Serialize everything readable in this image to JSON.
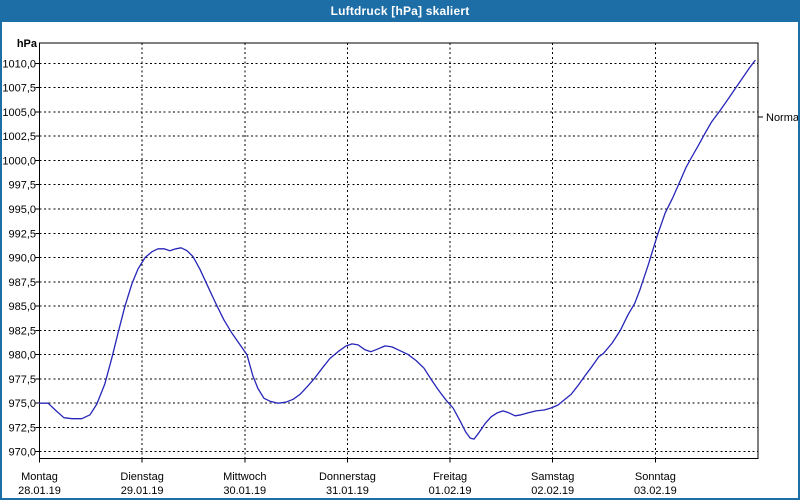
{
  "window": {
    "title": "Luftdruck [hPa] skaliert"
  },
  "chart_data": {
    "type": "line",
    "title": "Luftdruck [hPa] skaliert",
    "unit_label": "hPa",
    "normal_label": "Normal",
    "normal_value": 1004.5,
    "grid": "dashed",
    "legend_position": "none",
    "ylim": [
      969.3,
      1012.1
    ],
    "x_hours_range": [
      0,
      168
    ],
    "y_tick_values": [
      1010.0,
      1007.5,
      1005.0,
      1002.5,
      1000.0,
      997.5,
      995.0,
      992.5,
      990.0,
      987.5,
      985.0,
      982.5,
      980.0,
      977.5,
      975.0,
      972.5,
      970.0
    ],
    "y_tick_labels": [
      "1010,0",
      "1007,5",
      "1005,0",
      "1002,5",
      "1000,0",
      "997,5",
      "995,0",
      "992,5",
      "990,0",
      "987,5",
      "985,0",
      "982,5",
      "980,0",
      "977,5",
      "975,0",
      "972,5",
      "970,0"
    ],
    "days": [
      {
        "name": "Montag",
        "date": "28.01.19"
      },
      {
        "name": "Dienstag",
        "date": "29.01.19"
      },
      {
        "name": "Mittwoch",
        "date": "30.01.19"
      },
      {
        "name": "Donnerstag",
        "date": "31.01.19"
      },
      {
        "name": "Freitag",
        "date": "01.02.19"
      },
      {
        "name": "Samstag",
        "date": "02.02.19"
      },
      {
        "name": "Sonntag",
        "date": "03.02.19"
      }
    ],
    "series": [
      {
        "name": "Luftdruck",
        "color": "#2626b8",
        "points": [
          [
            0,
            975.0
          ],
          [
            2,
            975.0
          ],
          [
            3.9,
            974.2
          ],
          [
            5.7,
            973.5
          ],
          [
            7.6,
            973.4
          ],
          [
            9.9,
            973.4
          ],
          [
            11.8,
            973.8
          ],
          [
            13.4,
            974.9
          ],
          [
            15.3,
            977.0
          ],
          [
            17,
            979.8
          ],
          [
            18.4,
            982.3
          ],
          [
            20,
            985.0
          ],
          [
            21.6,
            987.3
          ],
          [
            23,
            988.8
          ],
          [
            24.7,
            990.0
          ],
          [
            26.3,
            990.6
          ],
          [
            27.7,
            990.9
          ],
          [
            29.1,
            990.9
          ],
          [
            30.5,
            990.7
          ],
          [
            31.9,
            990.9
          ],
          [
            33.1,
            991.0
          ],
          [
            34.5,
            990.7
          ],
          [
            35.9,
            990.1
          ],
          [
            37.5,
            988.8
          ],
          [
            39.4,
            987.0
          ],
          [
            41.3,
            985.2
          ],
          [
            43.1,
            983.6
          ],
          [
            45,
            982.2
          ],
          [
            46.9,
            981.0
          ],
          [
            48.5,
            980.0
          ],
          [
            49.9,
            977.8
          ],
          [
            51.1,
            976.5
          ],
          [
            52.5,
            975.5
          ],
          [
            53.9,
            975.2
          ],
          [
            55.8,
            975.0
          ],
          [
            57.6,
            975.1
          ],
          [
            59.3,
            975.4
          ],
          [
            60.9,
            975.9
          ],
          [
            62.8,
            976.8
          ],
          [
            64.4,
            977.6
          ],
          [
            66.1,
            978.6
          ],
          [
            67.9,
            979.6
          ],
          [
            69.8,
            980.3
          ],
          [
            71.7,
            980.9
          ],
          [
            73.1,
            981.1
          ],
          [
            74.5,
            981.0
          ],
          [
            76.1,
            980.5
          ],
          [
            77.5,
            980.3
          ],
          [
            79.2,
            980.6
          ],
          [
            80.8,
            980.9
          ],
          [
            82.4,
            980.8
          ],
          [
            84.3,
            980.4
          ],
          [
            86.2,
            980.0
          ],
          [
            88,
            979.4
          ],
          [
            89.9,
            978.6
          ],
          [
            91.5,
            977.5
          ],
          [
            93.2,
            976.4
          ],
          [
            95.1,
            975.3
          ],
          [
            96.7,
            974.5
          ],
          [
            98.3,
            973.2
          ],
          [
            99.7,
            972.0
          ],
          [
            100.7,
            971.4
          ],
          [
            101.6,
            971.3
          ],
          [
            102.8,
            972.0
          ],
          [
            104.2,
            972.9
          ],
          [
            105.6,
            973.6
          ],
          [
            107,
            974.0
          ],
          [
            108.4,
            974.2
          ],
          [
            109.8,
            974.0
          ],
          [
            111.2,
            973.7
          ],
          [
            112.6,
            973.8
          ],
          [
            114.2,
            974.0
          ],
          [
            116.1,
            974.2
          ],
          [
            118,
            974.3
          ],
          [
            119.6,
            974.5
          ],
          [
            121.2,
            974.8
          ],
          [
            122.6,
            975.3
          ],
          [
            124.3,
            975.9
          ],
          [
            125.9,
            976.8
          ],
          [
            127.5,
            977.8
          ],
          [
            129.2,
            978.8
          ],
          [
            130.8,
            979.8
          ],
          [
            131.8,
            980.1
          ],
          [
            133.9,
            981.2
          ],
          [
            135.8,
            982.5
          ],
          [
            137.6,
            984.1
          ],
          [
            139.2,
            985.3
          ],
          [
            140.4,
            986.7
          ],
          [
            142.3,
            989.2
          ],
          [
            144.4,
            992.2
          ],
          [
            146.3,
            994.6
          ],
          [
            148.1,
            996.2
          ],
          [
            149.8,
            997.9
          ],
          [
            151.2,
            999.3
          ],
          [
            152.3,
            1000.2
          ],
          [
            154,
            1001.5
          ],
          [
            155.6,
            1002.8
          ],
          [
            157.2,
            1004.0
          ],
          [
            158.9,
            1005.0
          ],
          [
            160.5,
            1006.0
          ],
          [
            161.9,
            1006.9
          ],
          [
            163.3,
            1007.8
          ],
          [
            164.7,
            1008.7
          ],
          [
            166.1,
            1009.6
          ],
          [
            167.3,
            1010.3
          ]
        ]
      }
    ]
  }
}
